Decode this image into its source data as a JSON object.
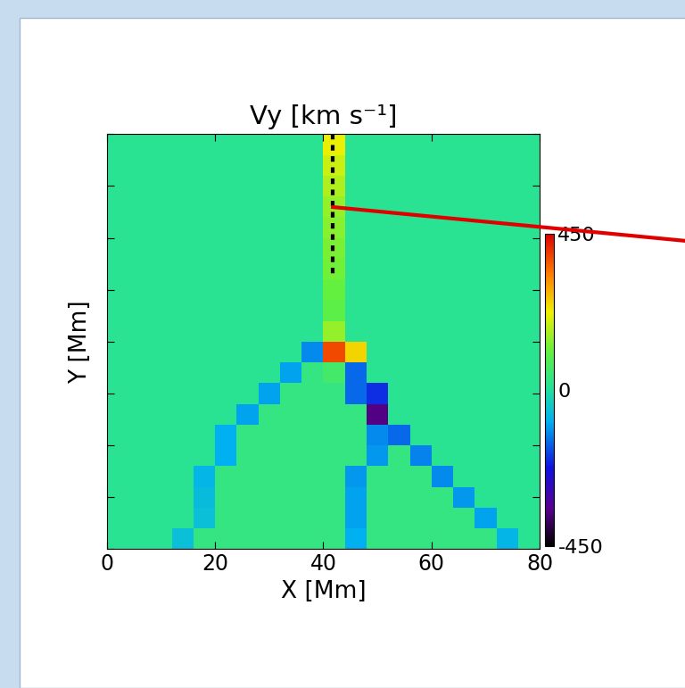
{
  "chart_data": {
    "type": "heatmap",
    "title": "Vy [km s⁻¹]",
    "x_label": "X [Mm]",
    "y_label": "Y [Mm]",
    "x": [
      2,
      6,
      10,
      14,
      18,
      22,
      26,
      30,
      34,
      38,
      42,
      46,
      50,
      54,
      58,
      62,
      66,
      70,
      74,
      78
    ],
    "y": [
      2,
      6,
      10,
      14,
      18,
      22,
      26,
      30,
      34,
      38,
      42,
      46,
      50,
      54,
      58,
      62,
      66,
      70,
      74,
      78
    ],
    "cells": [
      [
        15,
        15,
        15,
        -60,
        35,
        35,
        35,
        35,
        35,
        35,
        35,
        -90,
        35,
        35,
        35,
        35,
        35,
        35,
        -80,
        15
      ],
      [
        15,
        15,
        15,
        15,
        -60,
        35,
        35,
        35,
        35,
        35,
        35,
        -100,
        35,
        35,
        35,
        35,
        35,
        -100,
        15,
        15
      ],
      [
        15,
        15,
        15,
        15,
        -70,
        35,
        35,
        35,
        35,
        35,
        35,
        -100,
        35,
        35,
        35,
        35,
        -110,
        15,
        15,
        15
      ],
      [
        15,
        15,
        15,
        15,
        -80,
        35,
        35,
        35,
        35,
        35,
        35,
        -110,
        35,
        35,
        35,
        -120,
        15,
        15,
        15,
        15
      ],
      [
        15,
        15,
        15,
        15,
        15,
        -90,
        35,
        35,
        35,
        35,
        35,
        35,
        -110,
        35,
        -130,
        15,
        15,
        15,
        15,
        15
      ],
      [
        15,
        15,
        15,
        15,
        15,
        -90,
        35,
        35,
        35,
        35,
        35,
        35,
        -120,
        -150,
        15,
        15,
        15,
        15,
        15,
        15
      ],
      [
        15,
        15,
        15,
        15,
        15,
        15,
        -100,
        35,
        35,
        35,
        35,
        35,
        -350,
        15,
        15,
        15,
        15,
        15,
        15,
        15
      ],
      [
        15,
        15,
        15,
        15,
        15,
        15,
        15,
        -100,
        35,
        35,
        35,
        -150,
        -200,
        15,
        15,
        15,
        15,
        15,
        15,
        15
      ],
      [
        15,
        15,
        15,
        15,
        15,
        15,
        15,
        15,
        -100,
        35,
        60,
        -150,
        15,
        15,
        15,
        15,
        15,
        15,
        15,
        15
      ],
      [
        15,
        15,
        15,
        15,
        15,
        15,
        15,
        15,
        15,
        -120,
        380,
        250,
        15,
        15,
        15,
        15,
        15,
        15,
        15,
        15
      ],
      [
        15,
        15,
        15,
        15,
        15,
        15,
        15,
        15,
        15,
        15,
        150,
        15,
        15,
        15,
        15,
        15,
        15,
        15,
        15,
        15
      ],
      [
        15,
        15,
        15,
        15,
        15,
        15,
        15,
        15,
        15,
        15,
        100,
        15,
        15,
        15,
        15,
        15,
        15,
        15,
        15,
        15
      ],
      [
        15,
        15,
        15,
        15,
        15,
        15,
        15,
        15,
        15,
        15,
        110,
        15,
        15,
        15,
        15,
        15,
        15,
        15,
        15,
        15
      ],
      [
        15,
        15,
        15,
        15,
        15,
        15,
        15,
        15,
        15,
        15,
        120,
        15,
        15,
        15,
        15,
        15,
        15,
        15,
        15,
        15
      ],
      [
        15,
        15,
        15,
        15,
        15,
        15,
        15,
        15,
        15,
        15,
        130,
        15,
        15,
        15,
        15,
        15,
        15,
        15,
        15,
        15
      ],
      [
        15,
        15,
        15,
        15,
        15,
        15,
        15,
        15,
        15,
        15,
        140,
        15,
        15,
        15,
        15,
        15,
        15,
        15,
        15,
        15
      ],
      [
        15,
        15,
        15,
        15,
        15,
        15,
        15,
        15,
        15,
        15,
        150,
        15,
        15,
        15,
        15,
        15,
        15,
        15,
        15,
        15
      ],
      [
        15,
        15,
        15,
        15,
        15,
        15,
        15,
        15,
        15,
        15,
        170,
        15,
        15,
        15,
        15,
        15,
        15,
        15,
        15,
        15
      ],
      [
        15,
        15,
        15,
        15,
        15,
        15,
        15,
        15,
        15,
        15,
        190,
        15,
        15,
        15,
        15,
        15,
        15,
        15,
        15,
        15
      ],
      [
        15,
        15,
        15,
        15,
        15,
        15,
        15,
        15,
        15,
        15,
        220,
        15,
        15,
        15,
        15,
        15,
        15,
        15,
        15,
        15
      ]
    ],
    "xlim": [
      0,
      80
    ],
    "ylim": [
      0,
      80
    ],
    "xticks": [
      0,
      20,
      40,
      60,
      80
    ],
    "yticks": [
      0,
      10,
      20,
      30,
      40,
      50,
      60,
      70,
      80
    ],
    "tick_labels": "x",
    "colorbar_range": [
      -450,
      450
    ],
    "colorbar_ticks": [
      -450,
      0,
      450
    ]
  }
}
